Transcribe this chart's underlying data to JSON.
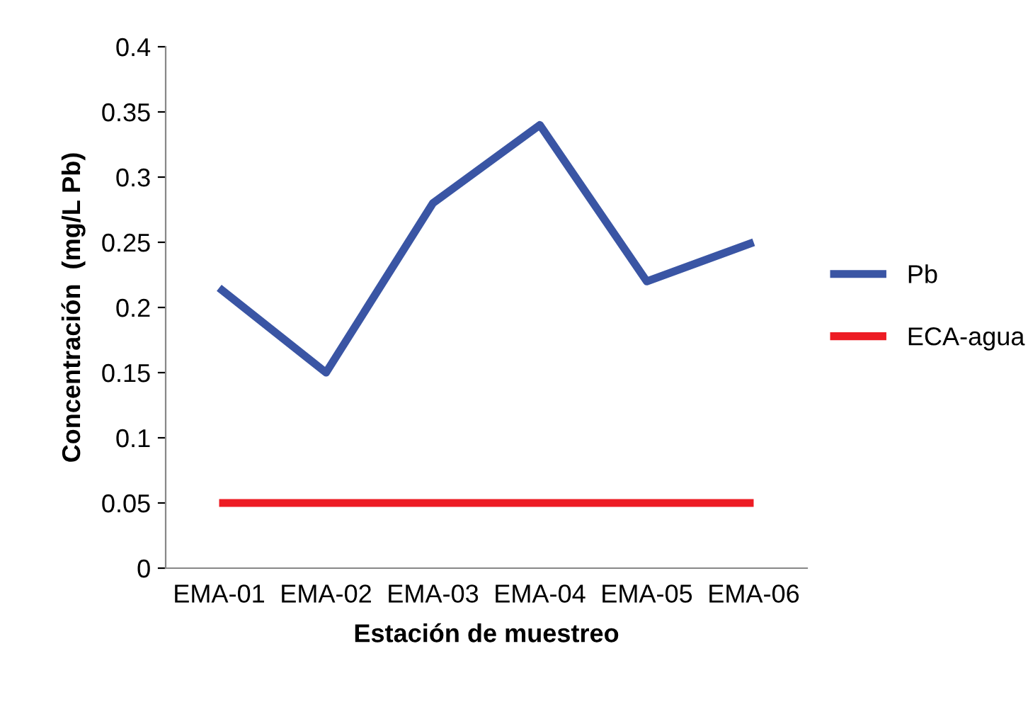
{
  "chart_data": {
    "type": "line",
    "xlabel": "Estación de muestreo",
    "ylabel": "Concentración  (mg/L Pb)",
    "categories": [
      "EMA-01",
      "EMA-02",
      "EMA-03",
      "EMA-04",
      "EMA-05",
      "EMA-06"
    ],
    "series": [
      {
        "name": "Pb",
        "color": "#3a55a4",
        "values": [
          0.215,
          0.15,
          0.28,
          0.34,
          0.22,
          0.25
        ]
      },
      {
        "name": "ECA-agua",
        "color": "#ed1c24",
        "values": [
          0.05,
          0.05,
          0.05,
          0.05,
          0.05,
          0.05
        ]
      }
    ],
    "ylim": [
      0,
      0.4
    ],
    "yticks": [
      {
        "value": 0,
        "label": "0"
      },
      {
        "value": 0.05,
        "label": "0.05"
      },
      {
        "value": 0.1,
        "label": "0.1"
      },
      {
        "value": 0.15,
        "label": "0.15"
      },
      {
        "value": 0.2,
        "label": "0.2"
      },
      {
        "value": 0.25,
        "label": "0.25"
      },
      {
        "value": 0.3,
        "label": "0.3"
      },
      {
        "value": 0.35,
        "label": "0.35"
      },
      {
        "value": 0.4,
        "label": "0.4"
      }
    ],
    "grid": false,
    "legend": "right",
    "marker": "none",
    "line_style": "solid"
  }
}
